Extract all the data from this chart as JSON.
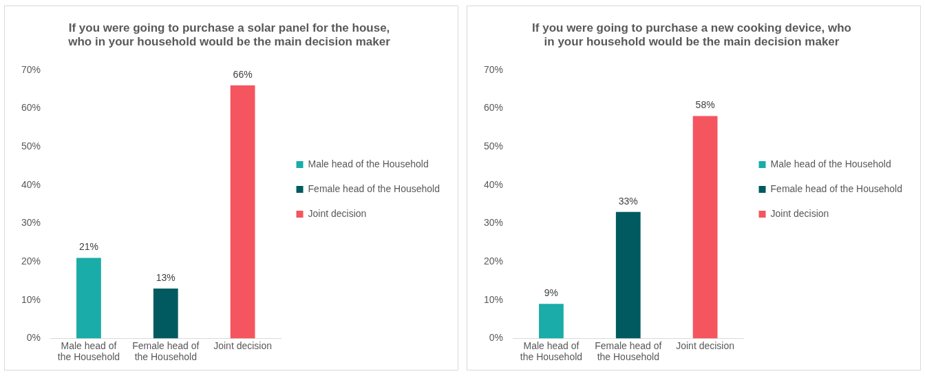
{
  "chart_data": [
    {
      "type": "bar",
      "title": "If you were going to purchase a solar panel for the house, who in your household would be the main decision maker",
      "categories": [
        "Male head of the Household",
        "Female head of the Household",
        "Joint decision"
      ],
      "series": [
        {
          "name": "Male head of the Household",
          "color": "#1aaca8",
          "values": [
            21,
            null,
            null
          ],
          "value_labels": [
            "21%",
            null,
            null
          ]
        },
        {
          "name": "Female head of the Household",
          "color": "#005a5f",
          "values": [
            null,
            13,
            null
          ],
          "value_labels": [
            null,
            "13%",
            null
          ]
        },
        {
          "name": "Joint decision",
          "color": "#f4555e",
          "values": [
            null,
            null,
            66
          ],
          "value_labels": [
            null,
            null,
            "66%"
          ]
        }
      ],
      "ylim": [
        0,
        70
      ],
      "yticks": [
        {
          "value": 0,
          "label": "0%"
        },
        {
          "value": 10,
          "label": "10%"
        },
        {
          "value": 20,
          "label": "20%"
        },
        {
          "value": 30,
          "label": "30%"
        },
        {
          "value": 40,
          "label": "40%"
        },
        {
          "value": 50,
          "label": "50%"
        },
        {
          "value": 60,
          "label": "60%"
        },
        {
          "value": 70,
          "label": "70%"
        }
      ],
      "grid": false,
      "legend": "right"
    },
    {
      "type": "bar",
      "title": "If you were going to purchase a new cooking device, who in your household would be the main decision maker",
      "categories": [
        "Male head of the Household",
        "Female head of the Household",
        "Joint decision"
      ],
      "series": [
        {
          "name": "Male head of the Household",
          "color": "#1aaca8",
          "values": [
            9,
            null,
            null
          ],
          "value_labels": [
            "9%",
            null,
            null
          ]
        },
        {
          "name": "Female head of the Household",
          "color": "#005a5f",
          "values": [
            null,
            33,
            null
          ],
          "value_labels": [
            null,
            "33%",
            null
          ]
        },
        {
          "name": "Joint decision",
          "color": "#f4555e",
          "values": [
            null,
            null,
            58
          ],
          "value_labels": [
            null,
            null,
            "58%"
          ]
        }
      ],
      "ylim": [
        0,
        70
      ],
      "yticks": [
        {
          "value": 0,
          "label": "0%"
        },
        {
          "value": 10,
          "label": "10%"
        },
        {
          "value": 20,
          "label": "20%"
        },
        {
          "value": 30,
          "label": "30%"
        },
        {
          "value": 40,
          "label": "40%"
        },
        {
          "value": 50,
          "label": "50%"
        },
        {
          "value": 60,
          "label": "60%"
        },
        {
          "value": 70,
          "label": "70%"
        }
      ],
      "grid": false,
      "legend": "right"
    }
  ]
}
